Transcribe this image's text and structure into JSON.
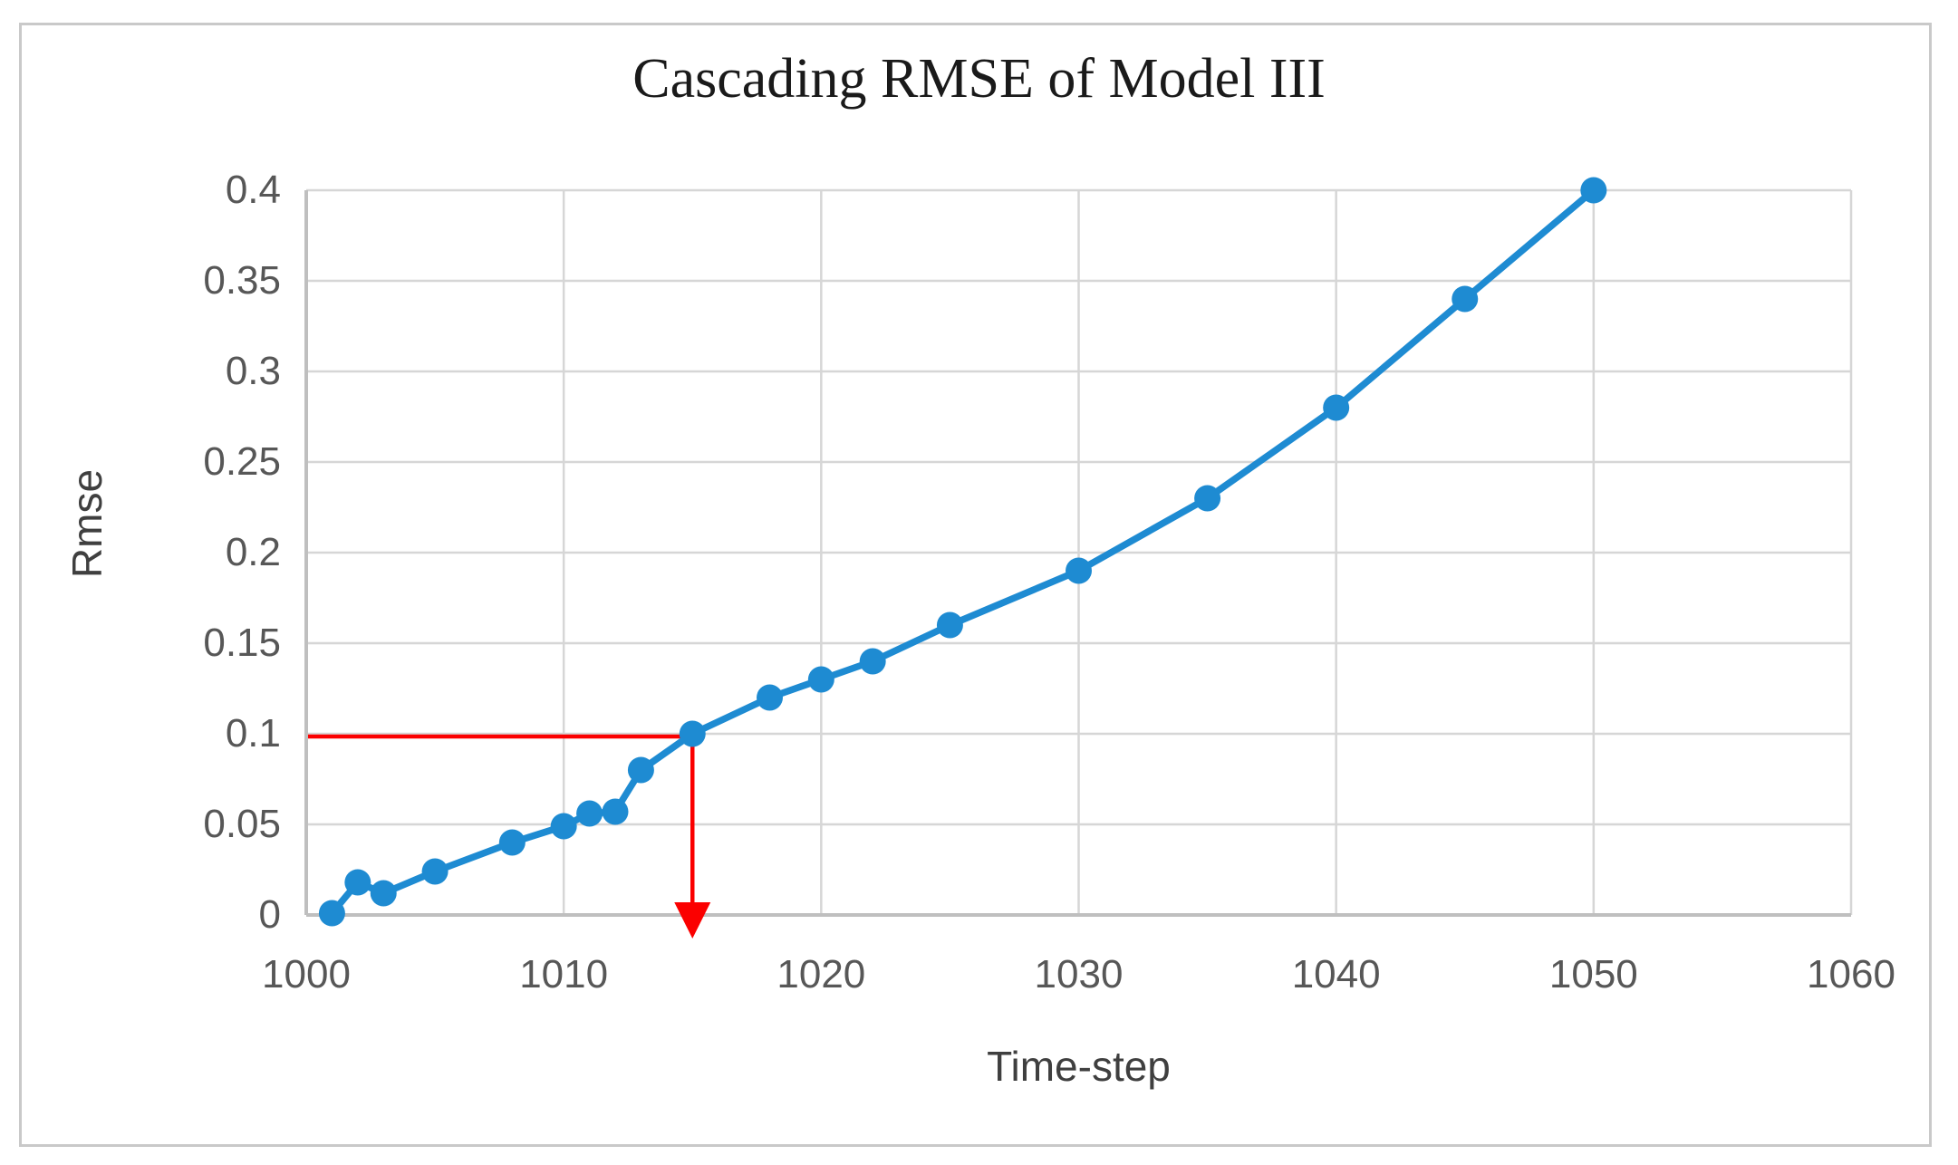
{
  "figure": {
    "title": "Cascading RMSE of Model III"
  },
  "chart_data": {
    "type": "line",
    "title": "Cascading RMSE of Model III",
    "xlabel": "Time-step",
    "ylabel": "Rmse",
    "xlim": [
      1000,
      1060
    ],
    "ylim": [
      0,
      0.4
    ],
    "x_ticks": [
      1000,
      1010,
      1020,
      1030,
      1040,
      1050,
      1060
    ],
    "x_tick_labels": [
      "1000",
      "1010",
      "1020",
      "1030",
      "1040",
      "1050",
      "1060"
    ],
    "y_ticks": [
      0,
      0.05,
      0.1,
      0.15,
      0.2,
      0.25,
      0.3,
      0.35,
      0.4
    ],
    "y_tick_labels": [
      "0",
      "0.05",
      "0.1",
      "0.15",
      "0.2",
      "0.25",
      "0.3",
      "0.35",
      "0.4"
    ],
    "grid": true,
    "legend": "none",
    "series": [
      {
        "name": "Cascading RMSE",
        "marker": "circle",
        "color": "#1E8BD2",
        "points": [
          [
            1001,
            0.001
          ],
          [
            1002,
            0.018
          ],
          [
            1003,
            0.012
          ],
          [
            1005,
            0.024
          ],
          [
            1008,
            0.04
          ],
          [
            1010,
            0.049
          ],
          [
            1011,
            0.056
          ],
          [
            1012,
            0.057
          ],
          [
            1013,
            0.08
          ],
          [
            1015,
            0.1
          ],
          [
            1018,
            0.12
          ],
          [
            1020,
            0.13
          ],
          [
            1022,
            0.14
          ],
          [
            1025,
            0.16
          ],
          [
            1030,
            0.19
          ],
          [
            1035,
            0.23
          ],
          [
            1040,
            0.28
          ],
          [
            1045,
            0.34
          ],
          [
            1050,
            0.4
          ]
        ]
      }
    ],
    "annotation": {
      "type": "arrow-guide",
      "color": "#FB0000",
      "target_x": 1015,
      "target_y": 0.1,
      "description": "Red line from y-axis at 0.1 to the curve at time-step 1015, then arrow pointing down to the x-axis"
    }
  },
  "colors": {
    "series_blue": "#1E8BD2",
    "annotation_red": "#FB0000",
    "gridline": "#D6D6D6",
    "axis_line": "#BFBFBF",
    "tick_text": "#575757",
    "axis_title_text": "#3F3F3F",
    "title_text": "#1A1A1A",
    "figure_border": "#C9C9C9",
    "background": "#FFFFFF"
  }
}
